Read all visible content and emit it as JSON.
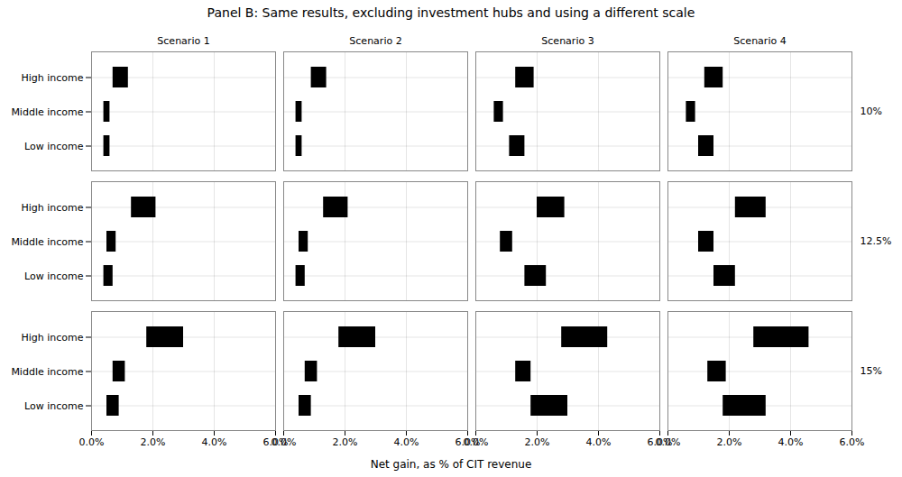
{
  "chart_data": {
    "type": "bar",
    "orientation": "horizontal",
    "title": "Panel B: Same results, excluding investment hubs and using a different scale",
    "xlabel": "Net gain, as % of CIT revenue",
    "categories": [
      "High income",
      "Middle income",
      "Low income"
    ],
    "facet_columns": [
      "Scenario 1",
      "Scenario 2",
      "Scenario 3",
      "Scenario 4"
    ],
    "facet_rows": [
      "10%",
      "12.5%",
      "15%"
    ],
    "color": "#000000",
    "grid": true,
    "xlim": [
      0.0,
      0.06
    ],
    "xticks": [
      {
        "value": 0.0,
        "label": "0.0%"
      },
      {
        "value": 0.02,
        "label": "2.0%"
      },
      {
        "value": 0.04,
        "label": "4.0%"
      },
      {
        "value": 0.06,
        "label": "6.0%"
      }
    ],
    "panels": [
      {
        "row": "10%",
        "column": "Scenario 1",
        "values": [
          [
            0.007,
            0.012
          ],
          [
            0.004,
            0.006
          ],
          [
            0.004,
            0.006
          ]
        ]
      },
      {
        "row": "10%",
        "column": "Scenario 2",
        "values": [
          [
            0.009,
            0.014
          ],
          [
            0.004,
            0.006
          ],
          [
            0.004,
            0.006
          ]
        ]
      },
      {
        "row": "10%",
        "column": "Scenario 3",
        "values": [
          [
            0.013,
            0.019
          ],
          [
            0.006,
            0.009
          ],
          [
            0.011,
            0.016
          ]
        ]
      },
      {
        "row": "10%",
        "column": "Scenario 4",
        "values": [
          [
            0.012,
            0.018
          ],
          [
            0.006,
            0.009
          ],
          [
            0.01,
            0.015
          ]
        ]
      },
      {
        "row": "12.5%",
        "column": "Scenario 1",
        "values": [
          [
            0.013,
            0.021
          ],
          [
            0.005,
            0.008
          ],
          [
            0.004,
            0.007
          ]
        ]
      },
      {
        "row": "12.5%",
        "column": "Scenario 2",
        "values": [
          [
            0.013,
            0.021
          ],
          [
            0.005,
            0.008
          ],
          [
            0.004,
            0.007
          ]
        ]
      },
      {
        "row": "12.5%",
        "column": "Scenario 3",
        "values": [
          [
            0.02,
            0.029
          ],
          [
            0.008,
            0.012
          ],
          [
            0.016,
            0.023
          ]
        ]
      },
      {
        "row": "12.5%",
        "column": "Scenario 4",
        "values": [
          [
            0.022,
            0.032
          ],
          [
            0.01,
            0.015
          ],
          [
            0.015,
            0.022
          ]
        ]
      },
      {
        "row": "15%",
        "column": "Scenario 1",
        "values": [
          [
            0.018,
            0.03
          ],
          [
            0.007,
            0.011
          ],
          [
            0.005,
            0.009
          ]
        ]
      },
      {
        "row": "15%",
        "column": "Scenario 2",
        "values": [
          [
            0.018,
            0.03
          ],
          [
            0.007,
            0.011
          ],
          [
            0.005,
            0.009
          ]
        ]
      },
      {
        "row": "15%",
        "column": "Scenario 3",
        "values": [
          [
            0.028,
            0.043
          ],
          [
            0.013,
            0.018
          ],
          [
            0.018,
            0.03
          ]
        ]
      },
      {
        "row": "15%",
        "column": "Scenario 4",
        "values": [
          [
            0.028,
            0.046
          ],
          [
            0.013,
            0.019
          ],
          [
            0.018,
            0.032
          ]
        ]
      }
    ]
  }
}
